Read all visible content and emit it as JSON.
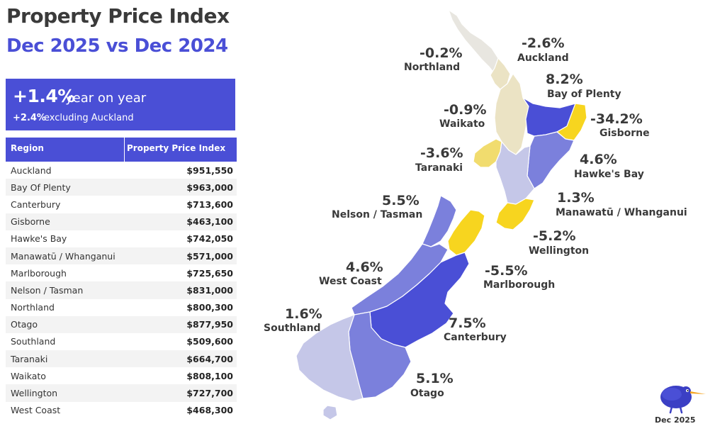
{
  "header": {
    "title": "Property Price Index",
    "subtitle": "Dec 2025 vs Dec 2024"
  },
  "summary": {
    "yoy_value": "+1.4%",
    "yoy_text": "year on year",
    "ex_auckland_value": "+2.4%",
    "ex_auckland_text": "excluding Auckland"
  },
  "table": {
    "headers": [
      "Region",
      "Property Price Index"
    ],
    "rows": [
      {
        "region": "Auckland",
        "value": "$951,550"
      },
      {
        "region": "Bay Of Plenty",
        "value": "$963,000"
      },
      {
        "region": "Canterbury",
        "value": "$713,600"
      },
      {
        "region": "Gisborne",
        "value": "$463,100"
      },
      {
        "region": "Hawke's Bay",
        "value": "$742,050"
      },
      {
        "region": "Manawatū / Whanganui",
        "value": "$571,000"
      },
      {
        "region": "Marlborough",
        "value": "$725,650"
      },
      {
        "region": "Nelson / Tasman",
        "value": "$831,000"
      },
      {
        "region": "Northland",
        "value": "$800,300"
      },
      {
        "region": "Otago",
        "value": "$877,950"
      },
      {
        "region": "Southland",
        "value": "$509,600"
      },
      {
        "region": "Taranaki",
        "value": "$664,700"
      },
      {
        "region": "Waikato",
        "value": "$808,100"
      },
      {
        "region": "Wellington",
        "value": "$727,700"
      },
      {
        "region": "West Coast",
        "value": "$468,300"
      }
    ]
  },
  "map": {
    "regions": [
      {
        "name": "Auckland",
        "change": "-2.6%"
      },
      {
        "name": "Northland",
        "change": "-0.2%"
      },
      {
        "name": "Bay of Plenty",
        "change": "8.2%"
      },
      {
        "name": "Waikato",
        "change": "-0.9%"
      },
      {
        "name": "Gisborne",
        "change": "-34.2%"
      },
      {
        "name": "Taranaki",
        "change": "-3.6%"
      },
      {
        "name": "Hawke's Bay",
        "change": "4.6%"
      },
      {
        "name": "Manawatū / Whanganui",
        "change": "1.3%"
      },
      {
        "name": "Nelson / Tasman",
        "change": "5.5%"
      },
      {
        "name": "Wellington",
        "change": "-5.2%"
      },
      {
        "name": "West Coast",
        "change": "4.6%"
      },
      {
        "name": "Marlborough",
        "change": "-5.5%"
      },
      {
        "name": "Southland",
        "change": "1.6%"
      },
      {
        "name": "Canterbury",
        "change": "7.5%"
      },
      {
        "name": "Otago",
        "change": "5.1%"
      }
    ],
    "colors": {
      "strong_up": "#4a4fd6",
      "up": "#7b80dc",
      "slight_up": "#c5c7e8",
      "flat": "#e8e6e0",
      "slight_down": "#ebe3c4",
      "down": "#f1dc6e",
      "strong_down": "#f7d51f"
    }
  },
  "footer": {
    "date": "Dec 2025",
    "logo_icon": "kiwi-bird-icon"
  }
}
